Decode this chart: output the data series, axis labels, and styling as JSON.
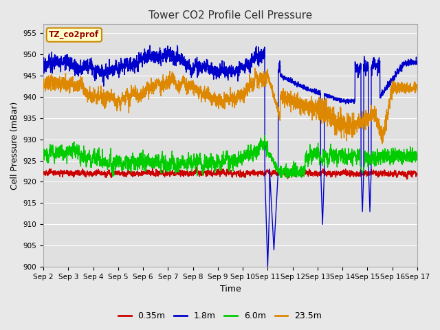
{
  "title": "Tower CO2 Profile Cell Pressure",
  "xlabel": "Time",
  "ylabel": "Cell Pressure (mBar)",
  "ylim": [
    900,
    957
  ],
  "yticks": [
    900,
    905,
    910,
    915,
    920,
    925,
    930,
    935,
    940,
    945,
    950,
    955
  ],
  "xlim": [
    0,
    15
  ],
  "xtick_labels": [
    "Sep 2",
    "Sep 3",
    "Sep 4",
    "Sep 5",
    "Sep 6",
    "Sep 7",
    "Sep 8",
    "Sep 9",
    "Sep 10",
    "Sep 11",
    "Sep 12",
    "Sep 13",
    "Sep 14",
    "Sep 15",
    "Sep 16",
    "Sep 17"
  ],
  "colors": {
    "0.35m": "#cc0000",
    "1.8m": "#0000cc",
    "6.0m": "#00cc00",
    "23.5m": "#dd8800"
  },
  "legend_label": "TZ_co2prof",
  "background_color": "#e8e8e8",
  "plot_bg_color": "#e0e0e0",
  "grid_color": "#ffffff",
  "legend_box_bg": "#ffffcc",
  "legend_box_edge": "#cc8800"
}
